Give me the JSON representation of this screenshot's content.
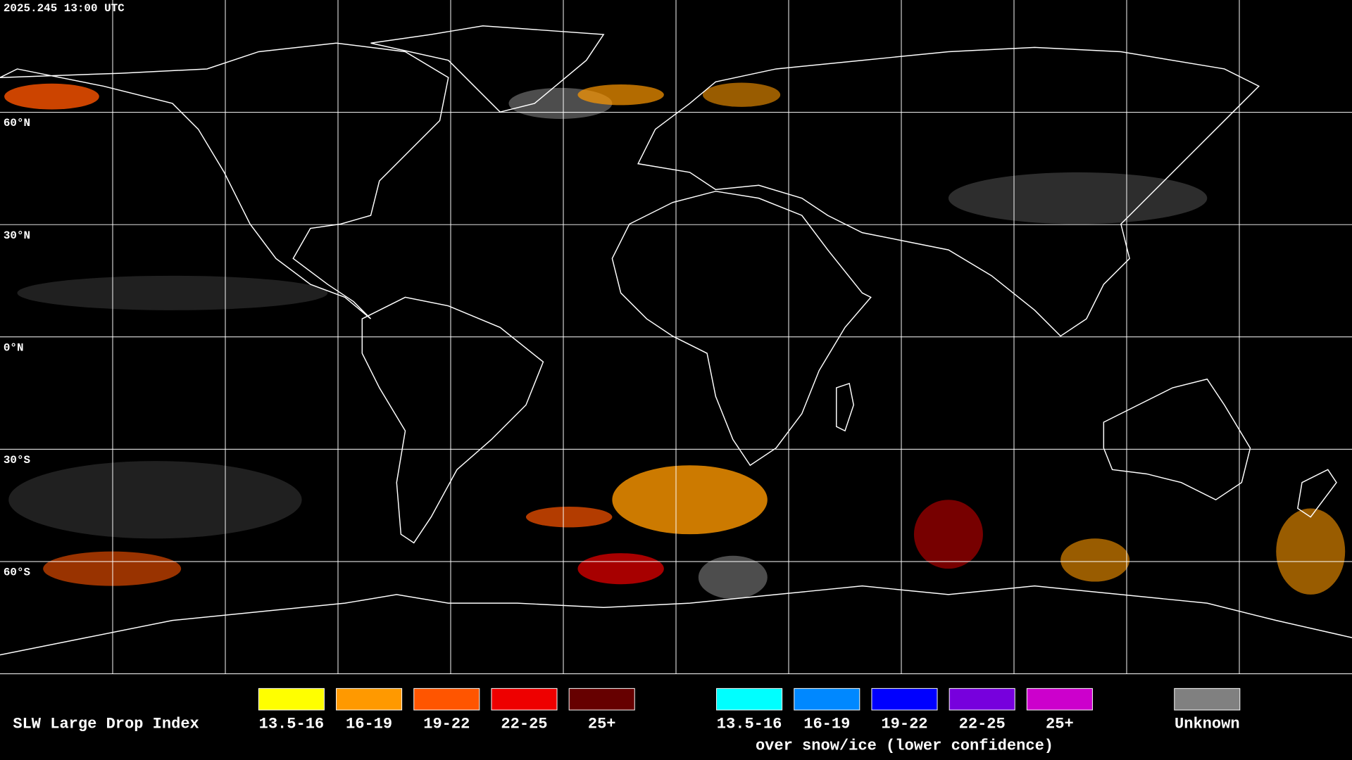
{
  "header": {
    "timestamp": "2025.245 13:00 UTC"
  },
  "latitude_labels": [
    "60°N",
    "30°N",
    "0°N",
    "30°S",
    "60°S"
  ],
  "legend": {
    "title": "SLW Large Drop Index",
    "groups": [
      {
        "items": [
          {
            "label": "13.5-16",
            "color": "#ffff00"
          },
          {
            "label": "16-19",
            "color": "#ff9900"
          },
          {
            "label": "19-22",
            "color": "#ff5500"
          },
          {
            "label": "22-25",
            "color": "#ee0000"
          },
          {
            "label": "25+",
            "color": "#660000"
          }
        ]
      },
      {
        "caption": "over snow/ice (lower confidence)",
        "items": [
          {
            "label": "13.5-16",
            "color": "#00ffff"
          },
          {
            "label": "16-19",
            "color": "#0088ff"
          },
          {
            "label": "19-22",
            "color": "#0000ff"
          },
          {
            "label": "22-25",
            "color": "#7700dd"
          },
          {
            "label": "25+",
            "color": "#cc00cc"
          }
        ]
      }
    ],
    "unknown": {
      "label": "Unknown",
      "color": "#808080"
    }
  }
}
